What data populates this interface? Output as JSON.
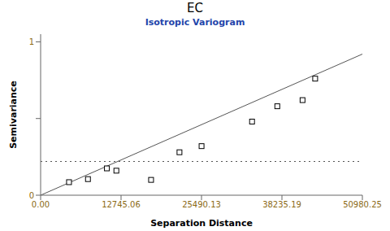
{
  "chart_data": {
    "type": "scatter",
    "title": "EC",
    "subtitle": "Isotropic Variogram",
    "xlabel": "Separation Distance",
    "ylabel": "Semivariance",
    "series": [
      {
        "type": "scatter",
        "marker": "square",
        "color": "#000000",
        "x": [
          4500,
          7500,
          10500,
          12000,
          17500,
          22000,
          25500,
          33500,
          37500,
          41500,
          43500
        ],
        "values": [
          0.085,
          0.105,
          0.175,
          0.16,
          0.1,
          0.28,
          0.32,
          0.48,
          0.58,
          0.62,
          0.76
        ]
      },
      {
        "type": "line",
        "color": "#555555",
        "x": [
          0,
          50980.25
        ],
        "values": [
          0.0,
          0.92
        ]
      },
      {
        "type": "hline",
        "color": "#555555",
        "line_style": "dotted",
        "values": [
          0.22
        ]
      }
    ],
    "xlim": [
      0,
      50980.25
    ],
    "ylim": [
      0,
      1.05
    ],
    "xticks": [
      {
        "value": 0.0,
        "label": "0.00"
      },
      12745.06,
      25490.13,
      38235.19,
      50980.25
    ],
    "yticks": [
      0,
      {
        "value": 0.5,
        "label": ""
      },
      1
    ],
    "grid": false
  }
}
